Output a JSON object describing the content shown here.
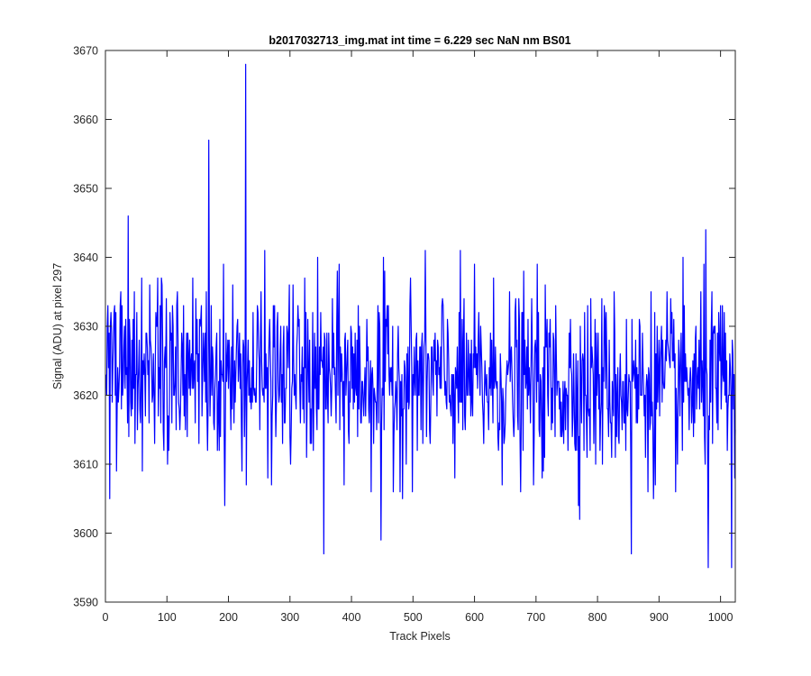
{
  "chart_data": {
    "type": "line",
    "title": "b2017032713_img.mat int time = 6.229 sec  NaN nm BS01",
    "xlabel": "Track Pixels",
    "ylabel": "Signal (ADU) at pixel 297",
    "xlim": [
      0,
      1024
    ],
    "ylim": [
      3590,
      3670
    ],
    "x_ticks": [
      0,
      100,
      200,
      300,
      400,
      500,
      600,
      700,
      800,
      900,
      1000
    ],
    "y_ticks": [
      3590,
      3600,
      3610,
      3620,
      3630,
      3640,
      3650,
      3660,
      3670
    ],
    "grid": false,
    "box": true,
    "series": [
      {
        "color": "#0000ff",
        "x_start": 1,
        "x_step": 1,
        "mean": 3621,
        "noise_sd": 6.5,
        "values_note_excluded": true,
        "peaks": [
          {
            "x": 37,
            "y": 3646
          },
          {
            "x": 168,
            "y": 3657
          },
          {
            "x": 228,
            "y": 3668
          },
          {
            "x": 976,
            "y": 3644
          },
          {
            "x": 355,
            "y": 3597
          },
          {
            "x": 448,
            "y": 3599
          },
          {
            "x": 855,
            "y": 3597
          },
          {
            "x": 980,
            "y": 3595
          },
          {
            "x": 1018,
            "y": 3595
          }
        ]
      }
    ]
  }
}
